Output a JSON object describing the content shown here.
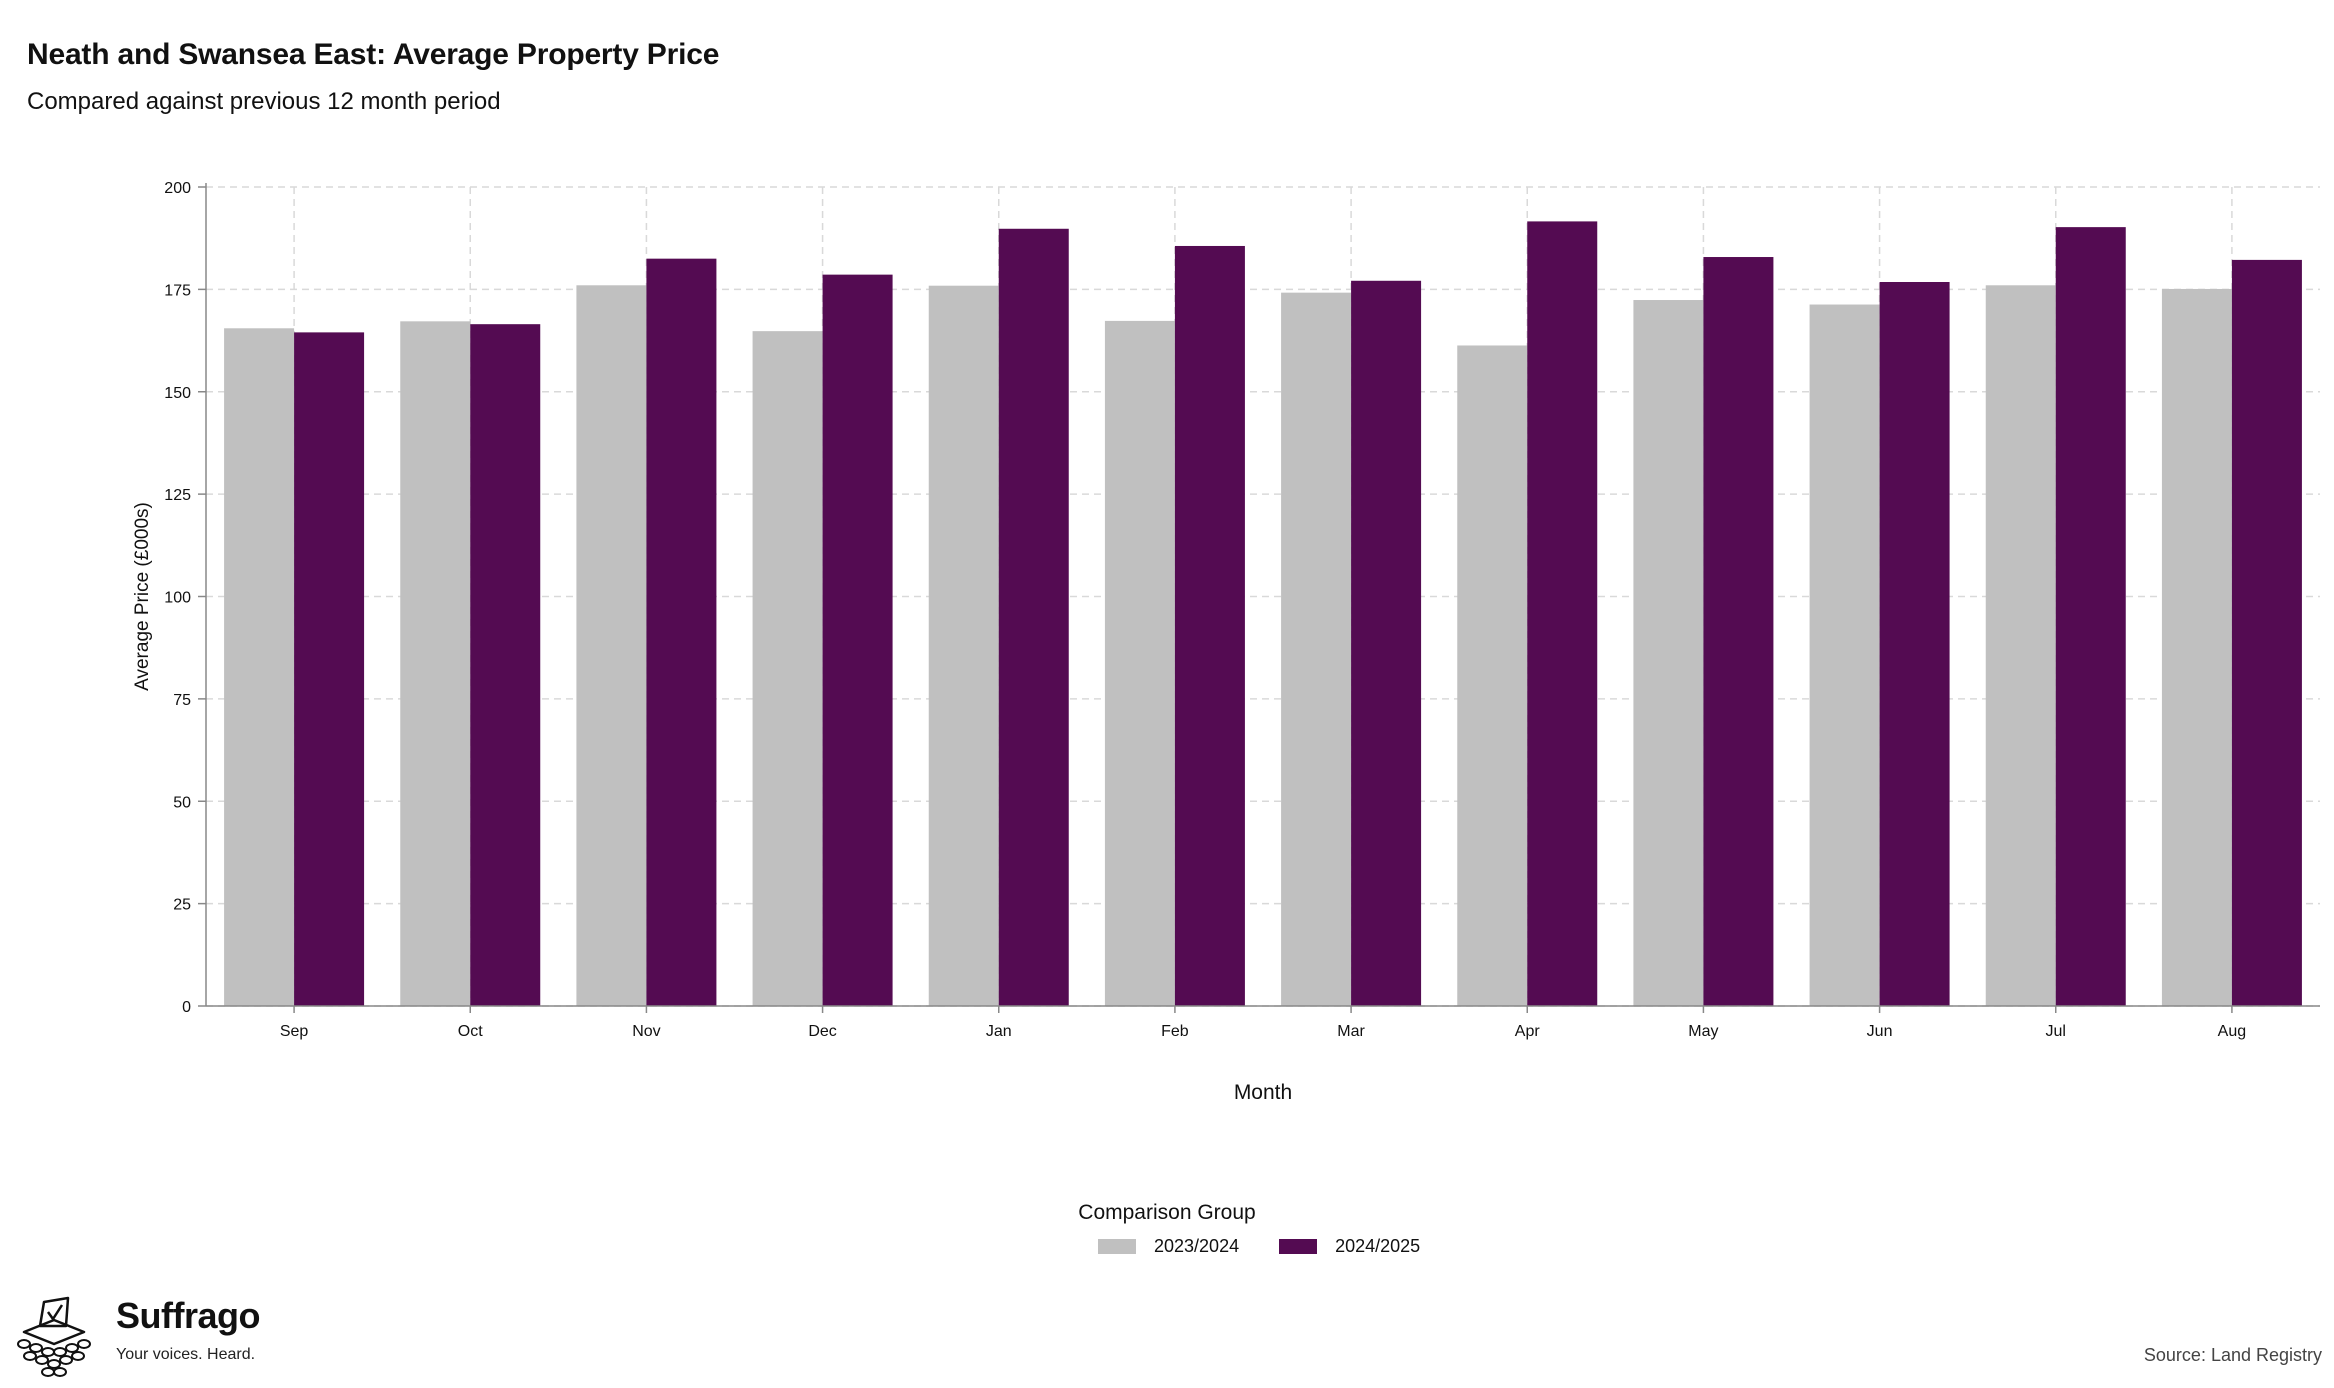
{
  "header": {
    "title": "Neath and Swansea East: Average Property Price",
    "subtitle": "Compared against previous 12 month period"
  },
  "chart_data": {
    "type": "bar",
    "categories": [
      "Sep",
      "Oct",
      "Nov",
      "Dec",
      "Jan",
      "Feb",
      "Mar",
      "Apr",
      "May",
      "Jun",
      "Jul",
      "Aug"
    ],
    "series": [
      {
        "name": "2023/2024",
        "color": "#c0c0c0",
        "values": [
          165.5,
          167.2,
          176.0,
          164.8,
          175.9,
          167.3,
          174.2,
          161.3,
          172.4,
          171.3,
          176.0,
          175.1
        ]
      },
      {
        "name": "2024/2025",
        "color": "#540b52",
        "values": [
          164.5,
          166.5,
          182.5,
          178.6,
          189.8,
          185.6,
          177.1,
          191.6,
          182.9,
          176.8,
          190.2,
          182.2
        ]
      }
    ],
    "xlabel": "Month",
    "ylabel": "Average Price (£000s)",
    "ylim": [
      0,
      200
    ],
    "yticks": [
      0,
      25,
      50,
      75,
      100,
      125,
      150,
      175,
      200
    ],
    "grid": true,
    "legend_title": "Comparison Group",
    "legend_position": "bottom"
  },
  "footer": {
    "brand": "Suffrago",
    "tagline": "Your voices. Heard.",
    "source": "Source: Land Registry"
  }
}
